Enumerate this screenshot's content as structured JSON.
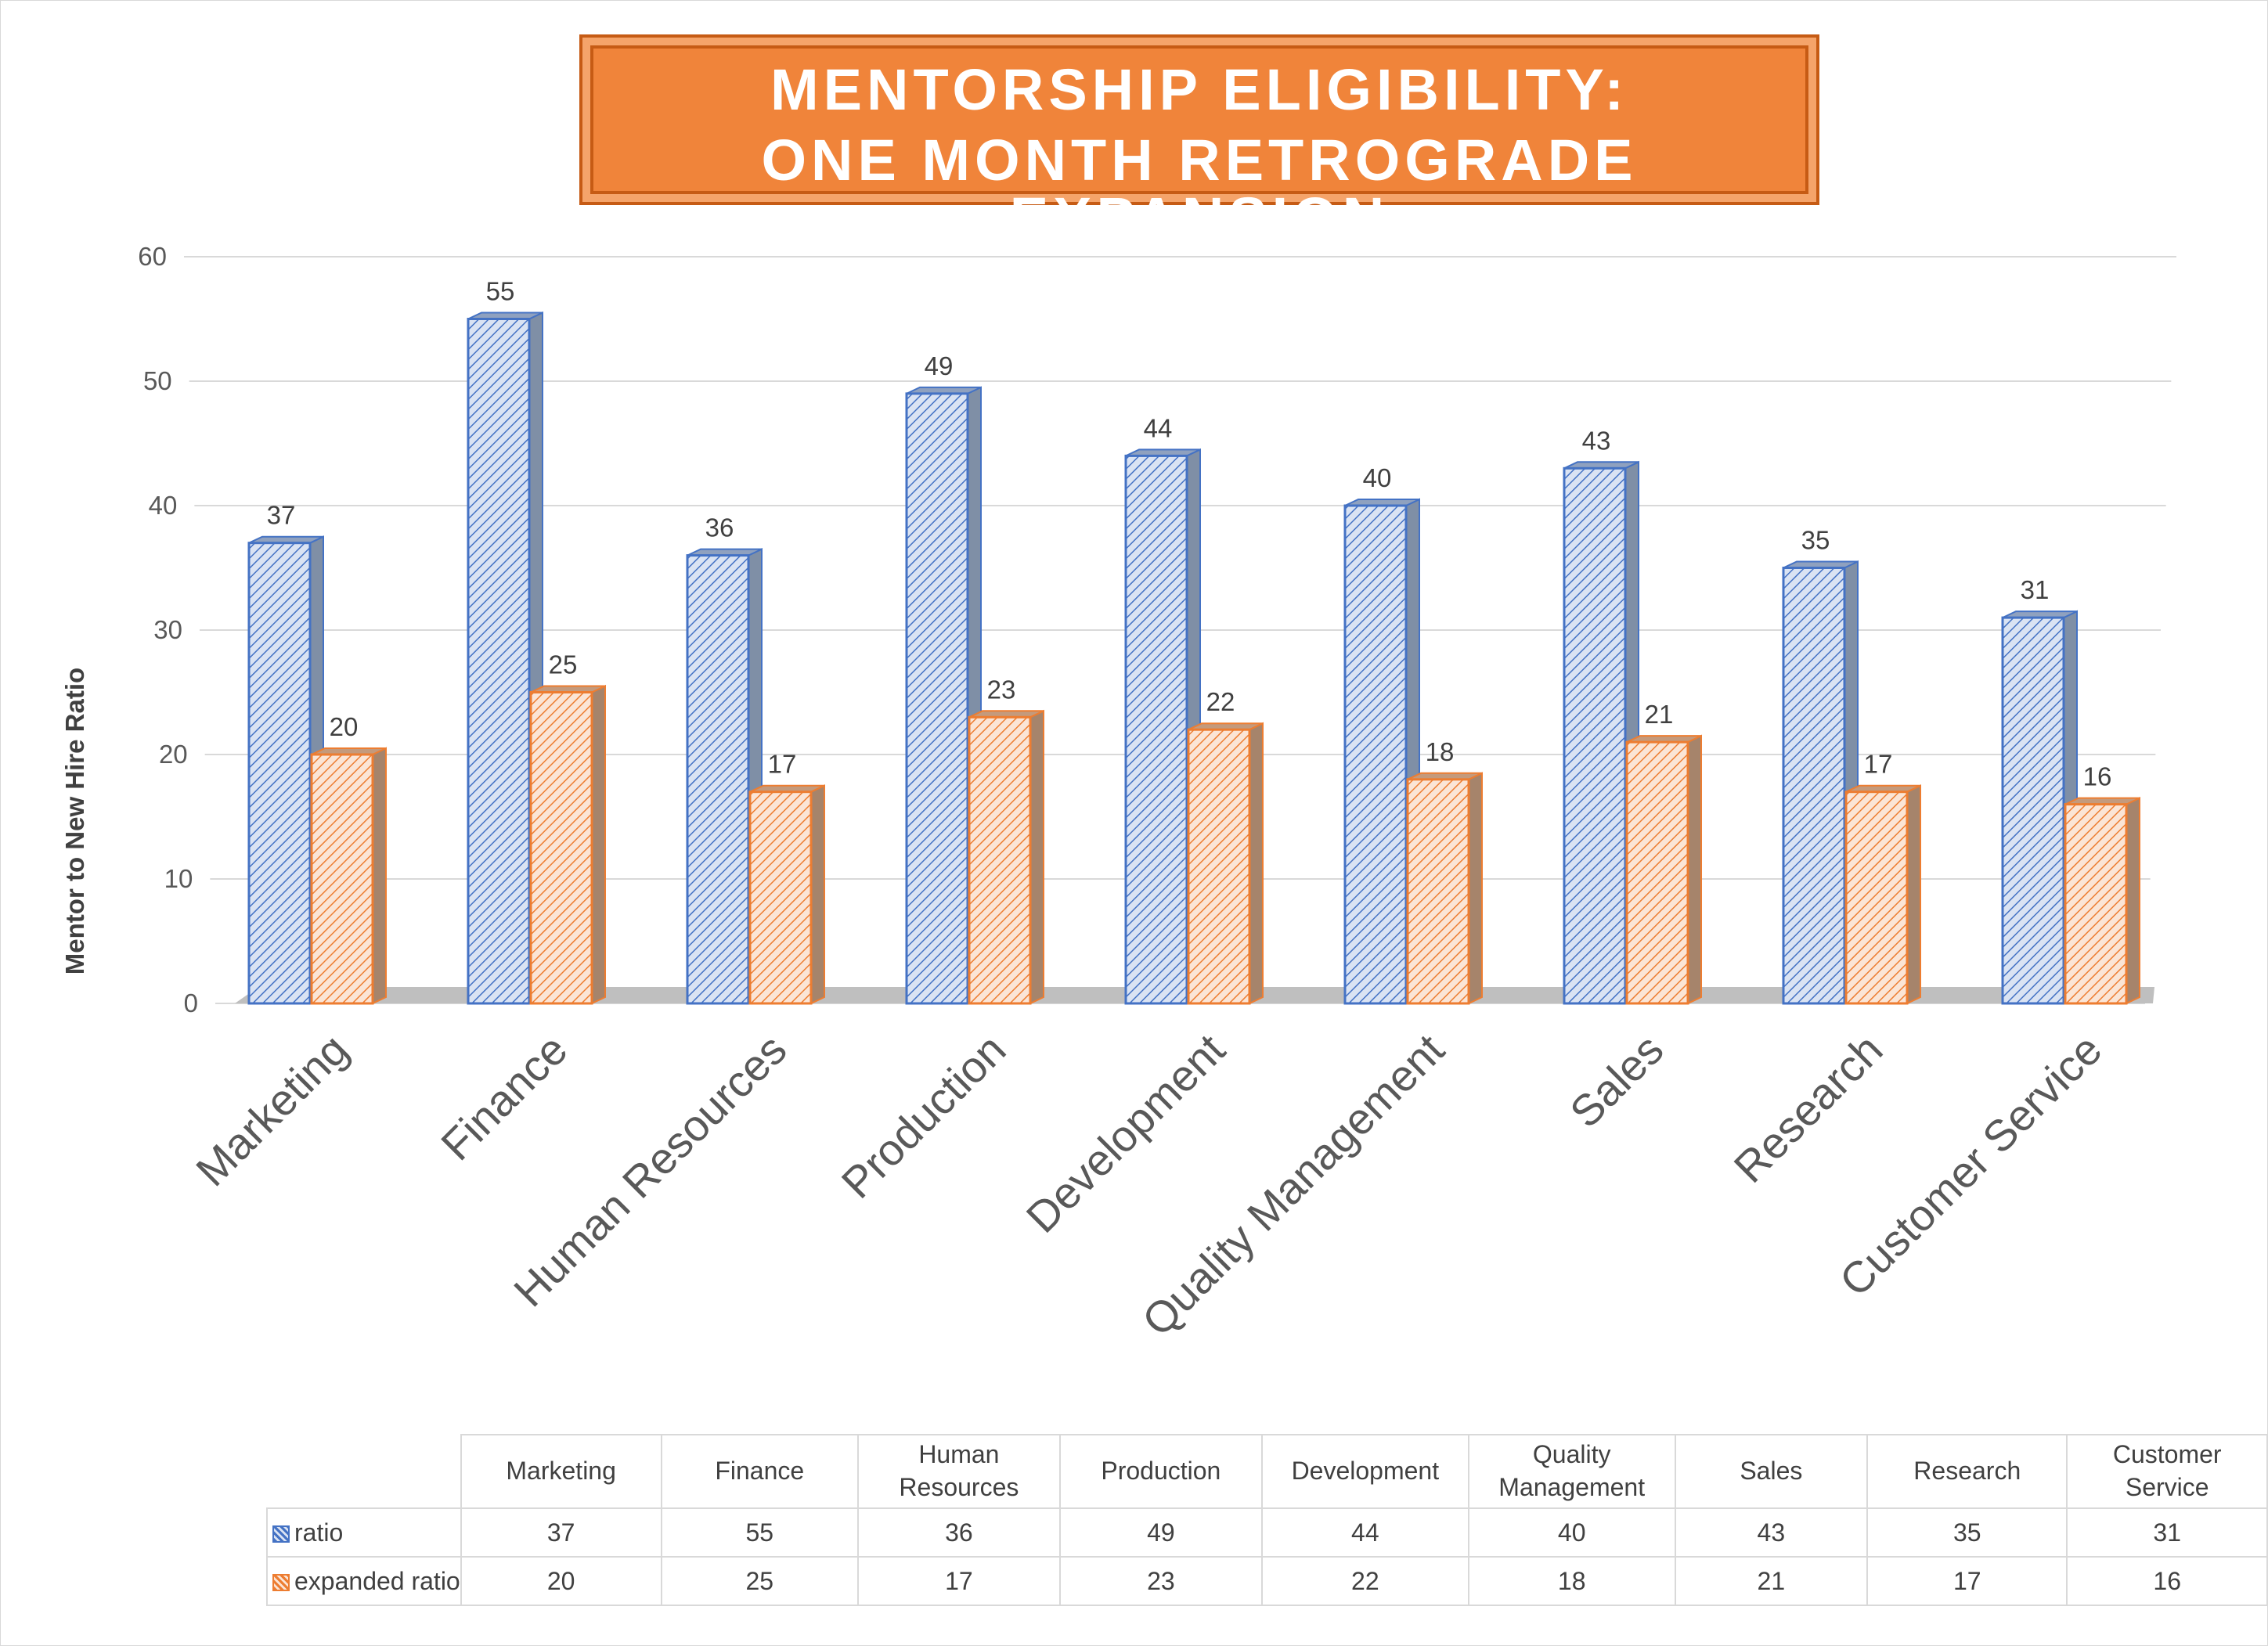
{
  "title_line1": "MENTORSHIP ELIGIBILITY:",
  "title_line2": "ONE MONTH RETROGRADE EXPANSION",
  "colors": {
    "series1": "#4472c4",
    "series1_fill": "#dae3f3",
    "series2": "#ed7d31",
    "series2_fill": "#fbe5d6",
    "title_bg": "#f0843a",
    "floor": "#bfbfbf"
  },
  "chart_data": {
    "type": "bar",
    "title": "MENTORSHIP ELIGIBILITY: ONE MONTH RETROGRADE EXPANSION",
    "xlabel": "",
    "ylabel": "Mentor to New Hire Ratio",
    "ylim": [
      0,
      60
    ],
    "yticks": [
      "0",
      "10",
      "20",
      "30",
      "40",
      "50",
      "60"
    ],
    "grid": true,
    "categories": [
      "Marketing",
      "Finance",
      "Human Resources",
      "Production",
      "Development",
      "Quality Management",
      "Sales",
      "Research",
      "Customer Service"
    ],
    "series": [
      {
        "name": "ratio",
        "values": [
          37,
          55,
          36,
          49,
          44,
          40,
          43,
          35,
          31
        ]
      },
      {
        "name": "expanded ratio",
        "values": [
          20,
          25,
          17,
          23,
          22,
          18,
          21,
          17,
          16
        ]
      }
    ],
    "data_labels": true,
    "data_table": true
  },
  "table": {
    "header_lines": [
      [
        "Marketing"
      ],
      [
        "Finance"
      ],
      [
        "Human",
        "Resources"
      ],
      [
        "Production"
      ],
      [
        "Development"
      ],
      [
        "Quality",
        "Management"
      ],
      [
        "Sales"
      ],
      [
        "Research"
      ],
      [
        "Customer Service"
      ]
    ]
  }
}
